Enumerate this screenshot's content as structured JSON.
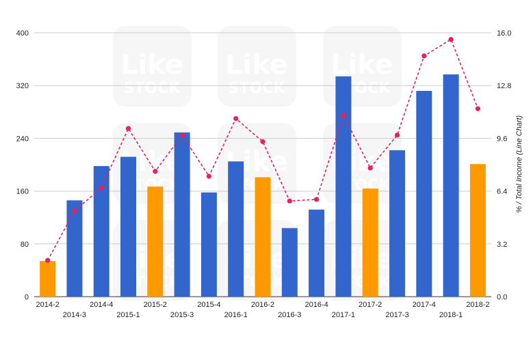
{
  "watermark": {
    "line1": "Like",
    "line2": "STOCK"
  },
  "chart_data": {
    "type": "bar",
    "categories": [
      "2014-2",
      "2014-3",
      "2014-4",
      "2015-1",
      "2015-2",
      "2015-3",
      "2015-4",
      "2016-1",
      "2016-2",
      "2016-3",
      "2016-4",
      "2017-1",
      "2017-2",
      "2017-3",
      "2017-4",
      "2018-1",
      "2018-2"
    ],
    "series": [
      {
        "type": "bar",
        "axis": "left",
        "values": [
          54,
          146,
          198,
          212,
          167,
          249,
          158,
          205,
          181,
          104,
          132,
          334,
          164,
          222,
          312,
          337,
          201
        ],
        "colors": [
          "#ff9900",
          "#3366cc",
          "#3366cc",
          "#3366cc",
          "#ff9900",
          "#3366cc",
          "#3366cc",
          "#3366cc",
          "#ff9900",
          "#3366cc",
          "#3366cc",
          "#3366cc",
          "#ff9900",
          "#3366cc",
          "#3366cc",
          "#3366cc",
          "#ff9900"
        ]
      },
      {
        "type": "line",
        "axis": "right",
        "style": "dashed",
        "color": "#e91e63",
        "values": [
          2.2,
          5.2,
          6.6,
          10.2,
          7.6,
          9.8,
          7.3,
          10.8,
          9.4,
          5.8,
          5.9,
          11.0,
          7.8,
          9.8,
          14.6,
          15.6,
          11.4
        ]
      }
    ],
    "y_left": {
      "ylim": [
        0,
        400
      ],
      "ticks": [
        "0",
        "80",
        "160",
        "240",
        "320",
        "400"
      ]
    },
    "y_right": {
      "ylim": [
        0,
        16
      ],
      "ticks": [
        "0.0",
        "3.2",
        "6.4",
        "9.6",
        "12.8",
        "16.0"
      ],
      "label": "% / Total Income (Line Chart)"
    },
    "xlabel": "",
    "grid": true,
    "legend": "none"
  }
}
